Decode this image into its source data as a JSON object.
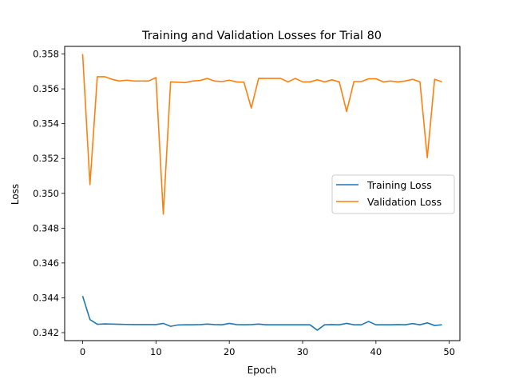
{
  "chart_data": {
    "type": "line",
    "title": "Training and Validation Losses for Trial 80",
    "xlabel": "Epoch",
    "ylabel": "Loss",
    "xlim": [
      -2.45,
      51.45
    ],
    "ylim": [
      0.34154,
      0.35844
    ],
    "xticks": [
      0,
      10,
      20,
      30,
      40,
      50
    ],
    "yticks": [
      0.342,
      0.344,
      0.346,
      0.348,
      0.35,
      0.352,
      0.354,
      0.356,
      0.358
    ],
    "grid": false,
    "legend_position": "center-right",
    "x": [
      0,
      1,
      2,
      3,
      4,
      5,
      6,
      7,
      8,
      9,
      10,
      11,
      12,
      13,
      14,
      15,
      16,
      17,
      18,
      19,
      20,
      21,
      22,
      23,
      24,
      25,
      26,
      27,
      28,
      29,
      30,
      31,
      32,
      33,
      34,
      35,
      36,
      37,
      38,
      39,
      40,
      41,
      42,
      43,
      44,
      45,
      46,
      47,
      48,
      49
    ],
    "series": [
      {
        "name": "Training Loss",
        "color": "#1f77b4",
        "values": [
          0.3441,
          0.34275,
          0.34248,
          0.3425,
          0.34249,
          0.34248,
          0.34247,
          0.34246,
          0.34246,
          0.34246,
          0.34246,
          0.34253,
          0.34236,
          0.34244,
          0.34245,
          0.34245,
          0.34246,
          0.34249,
          0.34246,
          0.34245,
          0.34253,
          0.34246,
          0.34245,
          0.34246,
          0.34249,
          0.34245,
          0.34245,
          0.34245,
          0.34245,
          0.34245,
          0.34245,
          0.34245,
          0.34214,
          0.34245,
          0.34246,
          0.34245,
          0.34253,
          0.34245,
          0.34245,
          0.34264,
          0.34245,
          0.34245,
          0.34245,
          0.34246,
          0.34245,
          0.34252,
          0.34245,
          0.34256,
          0.34241,
          0.34245
        ]
      },
      {
        "name": "Validation Loss",
        "color": "#ff7f0e",
        "values": [
          0.358,
          0.3505,
          0.3567,
          0.3567,
          0.35655,
          0.35645,
          0.3565,
          0.35645,
          0.35645,
          0.35645,
          0.35665,
          0.3488,
          0.3564,
          0.35638,
          0.35636,
          0.35645,
          0.35648,
          0.3566,
          0.35645,
          0.35642,
          0.3565,
          0.3564,
          0.35638,
          0.3549,
          0.3566,
          0.3566,
          0.3566,
          0.3566,
          0.3564,
          0.3566,
          0.3564,
          0.3564,
          0.35652,
          0.3564,
          0.35652,
          0.3564,
          0.3547,
          0.35642,
          0.35642,
          0.35658,
          0.35658,
          0.3564,
          0.35645,
          0.3564,
          0.35645,
          0.35655,
          0.3564,
          0.35205,
          0.35655,
          0.3564
        ]
      }
    ]
  }
}
